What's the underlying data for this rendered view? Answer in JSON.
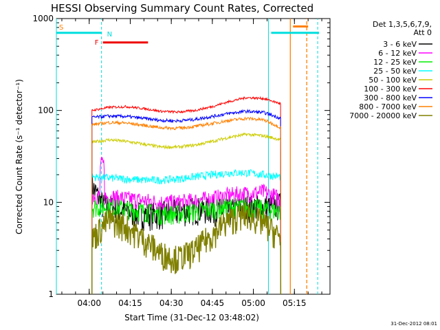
{
  "chart_data": {
    "type": "line",
    "title": "HESSI Observing Summary Count Rates, Corrected",
    "xlabel": "Start Time (31-Dec-12 03:48:02)",
    "ylabel": "Corrected Count Rate (s⁻¹ detector⁻¹)",
    "yscale": "log",
    "ylim": [
      1,
      1000
    ],
    "xlim_minutes_after_0348": [
      0,
      100
    ],
    "x_tick_labels": [
      "04:00",
      "04:15",
      "04:30",
      "04:45",
      "05:00",
      "05:15"
    ],
    "x_tick_minutes_after_0348": [
      12,
      27,
      42,
      57,
      72,
      87
    ],
    "y_tick_labels": [
      "1",
      "10",
      "100",
      "1000"
    ],
    "y_tick_values": [
      1,
      10,
      100,
      1000
    ],
    "legend_title_lines": [
      "Det 1,3,5,6,7,9,",
      "Att 0"
    ],
    "legend_position": "right, outside plot",
    "footer_date": "31-Dec-2012 08:01",
    "flag_labels": {
      "saa": "S",
      "night": "N",
      "flare": "F"
    },
    "flag_colors": {
      "saa": "#ff8000",
      "night": "#00dddd",
      "flare": "#ee0000"
    },
    "series": [
      {
        "name": "3 - 6 keV",
        "color": "#000000",
        "profile": [
          10,
          9,
          8,
          7.5,
          7.5,
          8,
          8.5,
          8.5,
          8,
          9,
          9,
          9.5
        ]
      },
      {
        "name": "6 - 12 keV",
        "color": "#ff00ff",
        "profile": [
          12,
          11.5,
          11,
          10.5,
          10,
          10,
          10.5,
          11,
          12,
          12.5,
          13,
          11
        ]
      },
      {
        "name": "12 - 25 keV",
        "color": "#00ee00",
        "profile": [
          9,
          9,
          8.5,
          8,
          7.5,
          7.5,
          8,
          8.5,
          9,
          9,
          8.5,
          8
        ]
      },
      {
        "name": "25 - 50 keV",
        "color": "#00ffff",
        "profile": [
          19,
          18.5,
          18,
          17.5,
          17.5,
          18,
          19,
          20,
          21,
          21,
          20,
          19
        ]
      },
      {
        "name": "50 - 100 keV",
        "color": "#cccc00",
        "profile": [
          45,
          48,
          46,
          43,
          40,
          40,
          42,
          46,
          51,
          55,
          53,
          48
        ]
      },
      {
        "name": "100 - 300 keV",
        "color": "#ff0000",
        "profile": [
          100,
          108,
          110,
          105,
          98,
          96,
          100,
          110,
          125,
          138,
          135,
          118
        ]
      },
      {
        "name": "300 - 800 keV",
        "color": "#0000ff",
        "profile": [
          84,
          87,
          86,
          82,
          78,
          77,
          80,
          86,
          93,
          98,
          95,
          82
        ]
      },
      {
        "name": "800 - 7000 keV",
        "color": "#ff8000",
        "profile": [
          70,
          74,
          73,
          69,
          65,
          64,
          67,
          72,
          78,
          82,
          79,
          65
        ]
      },
      {
        "name": "7000 - 20000 keV",
        "color": "#808000",
        "profile": [
          4,
          6.5,
          5.5,
          4,
          2.8,
          2.5,
          3,
          4.5,
          6.5,
          7.5,
          6,
          4
        ]
      }
    ]
  }
}
